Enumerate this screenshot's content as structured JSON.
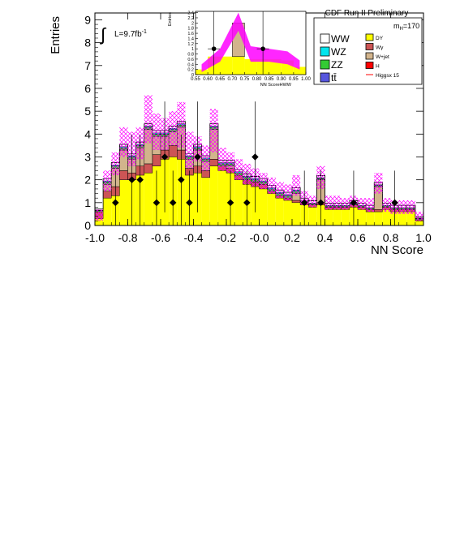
{
  "chart_data": {
    "type": "bar",
    "title": "CDF Run II Preliminary",
    "xlabel": "NN Score",
    "ylabel": "Entries",
    "xlim": [
      -1.0,
      1.0
    ],
    "ylim": [
      0,
      9.3
    ],
    "grid": false,
    "legend_position": "top-right",
    "lumi_label": "L=9.7fb",
    "lumi_sup": "-1",
    "mass_label": "m",
    "mass_sub": "H",
    "mass_value": "=170",
    "x_ticks": [
      "-1.0",
      "-0.8",
      "-0.6",
      "-0.4",
      "-0.2",
      "-0.0",
      "0.2",
      "0.4",
      "0.6",
      "0.8",
      "1.0"
    ],
    "y_ticks": [
      "0",
      "1",
      "2",
      "3",
      "4",
      "5",
      "6",
      "7",
      "8",
      "9"
    ],
    "bin_edges_start": -1.0,
    "bin_width": 0.05,
    "series": [
      {
        "name": "DY",
        "values": [
          0.3,
          1.2,
          1.3,
          2.0,
          2.0,
          2.2,
          2.3,
          2.6,
          2.9,
          3.0,
          2.9,
          2.2,
          2.3,
          2.1,
          2.6,
          2.4,
          2.3,
          2.0,
          1.8,
          1.7,
          1.6,
          1.4,
          1.2,
          1.1,
          1.0,
          0.9,
          0.8,
          0.9,
          0.7,
          0.7,
          0.7,
          0.8,
          0.7,
          0.6,
          0.6,
          0.7,
          0.6,
          0.6,
          0.6,
          0.2
        ]
      },
      {
        "name": "Wγ",
        "values": [
          0.3,
          0.3,
          0.4,
          0.4,
          0.3,
          0.4,
          0.4,
          0.5,
          0.4,
          0.5,
          0.4,
          0.3,
          0.3,
          0.3,
          0.3,
          0.2,
          0.2,
          0.2,
          0.2,
          0.2,
          0.2,
          0.1,
          0.1,
          0.1,
          0.1,
          0.1,
          0.1,
          0.1,
          0.1,
          0.1,
          0.1,
          0.1,
          0.1,
          0.1,
          0.1,
          0.1,
          0.1,
          0.1,
          0.1,
          0.05
        ]
      },
      {
        "name": "W+jet",
        "values": [
          0.0,
          0.3,
          0.8,
          0.9,
          0.6,
          0.8,
          1.5,
          0.8,
          0.6,
          0.6,
          1.0,
          0.4,
          0.7,
          0.4,
          1.3,
          0.0,
          0.1,
          0.0,
          0.0,
          0.0,
          0.0,
          0.0,
          0.0,
          0.0,
          0.3,
          0.0,
          0.0,
          1.0,
          0.0,
          0.0,
          0.0,
          0.0,
          0.0,
          0.0,
          1.0,
          0.0,
          0.0,
          0.0,
          0.0,
          0.0
        ]
      },
      {
        "name": "ZZ",
        "values": [
          0.05,
          0.1,
          0.1,
          0.1,
          0.1,
          0.1,
          0.1,
          0.1,
          0.1,
          0.1,
          0.1,
          0.1,
          0.1,
          0.1,
          0.1,
          0.1,
          0.1,
          0.1,
          0.1,
          0.1,
          0.1,
          0.1,
          0.1,
          0.1,
          0.1,
          0.05,
          0.05,
          0.05,
          0.05,
          0.05,
          0.05,
          0.05,
          0.05,
          0.05,
          0.05,
          0.05,
          0.05,
          0.05,
          0.05,
          0.05
        ]
      },
      {
        "name": "WZ",
        "values": [
          0.02,
          0.05,
          0.05,
          0.05,
          0.05,
          0.05,
          0.05,
          0.05,
          0.05,
          0.05,
          0.05,
          0.05,
          0.05,
          0.05,
          0.05,
          0.05,
          0.05,
          0.05,
          0.05,
          0.05,
          0.05,
          0.05,
          0.05,
          0.05,
          0.05,
          0.03,
          0.03,
          0.03,
          0.03,
          0.03,
          0.03,
          0.03,
          0.03,
          0.03,
          0.03,
          0.03,
          0.03,
          0.03,
          0.03,
          0.02
        ]
      },
      {
        "name": "WW",
        "values": [
          0.05,
          0.1,
          0.1,
          0.1,
          0.1,
          0.1,
          0.1,
          0.1,
          0.1,
          0.1,
          0.1,
          0.1,
          0.1,
          0.1,
          0.1,
          0.1,
          0.1,
          0.1,
          0.1,
          0.1,
          0.1,
          0.1,
          0.1,
          0.1,
          0.1,
          0.1,
          0.1,
          0.1,
          0.1,
          0.1,
          0.1,
          0.1,
          0.1,
          0.1,
          0.1,
          0.1,
          0.1,
          0.1,
          0.1,
          0.05
        ]
      }
    ],
    "band_upper": [
      0.7,
      2.4,
      3.2,
      4.3,
      4.1,
      4.3,
      5.7,
      4.9,
      4.7,
      5.0,
      5.4,
      4.1,
      3.9,
      3.5,
      5.1,
      3.4,
      3.2,
      2.9,
      2.7,
      2.5,
      2.3,
      2.1,
      1.9,
      1.8,
      2.2,
      1.5,
      1.3,
      2.6,
      1.3,
      1.3,
      1.2,
      1.3,
      1.2,
      1.2,
      2.3,
      1.2,
      1.1,
      1.1,
      1.1,
      0.6
    ],
    "band_lower": [
      0.2,
      1.5,
      2.2,
      3.0,
      2.6,
      2.9,
      3.6,
      3.3,
      3.3,
      3.5,
      3.4,
      2.5,
      2.8,
      2.4,
      3.2,
      2.4,
      2.3,
      2.0,
      1.8,
      1.7,
      1.6,
      1.4,
      1.2,
      1.1,
      1.3,
      0.9,
      0.8,
      1.6,
      0.7,
      0.7,
      0.7,
      0.8,
      0.7,
      0.6,
      1.4,
      0.6,
      0.5,
      0.5,
      0.5,
      0.2
    ],
    "data_points": [
      {
        "x": -0.875,
        "y": 1
      },
      {
        "x": -0.775,
        "y": 2
      },
      {
        "x": -0.725,
        "y": 2
      },
      {
        "x": -0.625,
        "y": 1
      },
      {
        "x": -0.575,
        "y": 3
      },
      {
        "x": -0.525,
        "y": 1
      },
      {
        "x": -0.475,
        "y": 2
      },
      {
        "x": -0.425,
        "y": 1
      },
      {
        "x": -0.375,
        "y": 3
      },
      {
        "x": -0.175,
        "y": 1
      },
      {
        "x": -0.075,
        "y": 1
      },
      {
        "x": -0.025,
        "y": 3
      },
      {
        "x": 0.275,
        "y": 1
      },
      {
        "x": 0.375,
        "y": 1
      },
      {
        "x": 0.575,
        "y": 1
      },
      {
        "x": 0.825,
        "y": 1
      }
    ],
    "legend": {
      "left": [
        {
          "label": "WW",
          "color": "#ffffff"
        },
        {
          "label": "WZ",
          "color": "#00e5ee"
        },
        {
          "label": "ZZ",
          "color": "#33cc33"
        },
        {
          "label": "tt̄",
          "color": "#5555dd"
        }
      ],
      "right": [
        {
          "label": "DY",
          "color": "#ffff00"
        },
        {
          "label": "Wγ",
          "color": "#cc5555"
        },
        {
          "label": "W+jet",
          "color": "#d2b48c"
        },
        {
          "label": "H",
          "color": "#ff0000"
        },
        {
          "label": "Higgsx 15",
          "color": "#ff0000",
          "line": true
        }
      ]
    },
    "inset": {
      "xlabel": "NN ScoreHWW",
      "ylabel": "Entries",
      "xlim": [
        0.55,
        1.0
      ],
      "ylim": [
        0,
        2.45
      ],
      "x_ticks": [
        "0.55",
        "0.60",
        "0.65",
        "0.70",
        "0.75",
        "0.80",
        "0.85",
        "0.90",
        "0.95",
        "1.00"
      ],
      "y_ticks": [
        "0",
        "0.2",
        "0.4",
        "0.6",
        "0.8",
        "1",
        "1.2",
        "1.4",
        "1.6",
        "1.8",
        "2",
        "2.2",
        "2.4"
      ],
      "bin_edges": [
        0.55,
        0.6,
        0.7,
        0.75,
        0.8,
        0.9,
        0.95,
        1.0
      ],
      "dy": [
        0.2,
        0.7,
        0.7,
        0.6,
        0.6,
        0.55,
        0.3
      ],
      "wjet": [
        0.0,
        0.0,
        1.3,
        0.0,
        0.0,
        0.0,
        0.0
      ],
      "band_upper": [
        0.4,
        1.0,
        2.4,
        1.1,
        1.0,
        0.9,
        0.55
      ],
      "band_lower": [
        0.1,
        0.5,
        1.7,
        0.5,
        0.5,
        0.4,
        0.2
      ],
      "data_points": [
        {
          "x": 0.625,
          "y": 1
        },
        {
          "x": 0.825,
          "y": 1
        }
      ]
    },
    "colors": {
      "dy": "#ffff00",
      "wgamma": "#cc5555",
      "wjet": "#d2b48c",
      "zz": "#33cc33",
      "wz": "#00e5ee",
      "ww": "#ffffff",
      "band": "#ff00ff",
      "data": "#000000"
    }
  }
}
